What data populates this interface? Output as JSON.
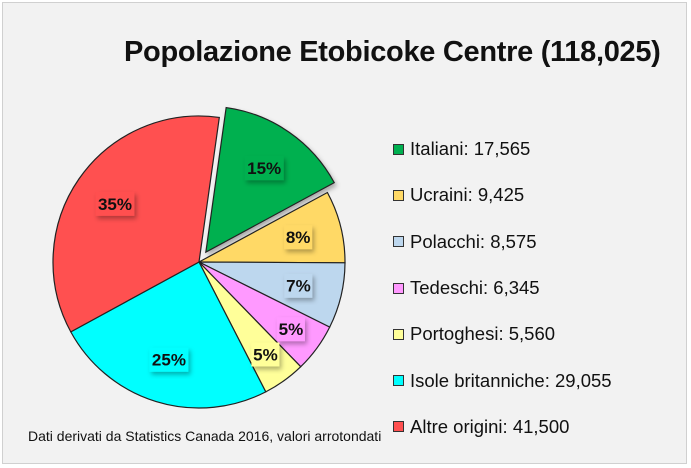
{
  "chart_data": {
    "type": "pie",
    "title": "Popolazione Etobicoke Centre (118,025)",
    "legend_position": "right",
    "slices": [
      {
        "label": "Italiani",
        "value": 17565,
        "value_text": "17,565",
        "percent_label": "15%",
        "color": "#00b050",
        "exploded": true
      },
      {
        "label": "Ucraini",
        "value": 9425,
        "value_text": "9,425",
        "percent_label": "8%",
        "color": "#ffd966",
        "exploded": false
      },
      {
        "label": "Polacchi",
        "value": 8575,
        "value_text": "8,575",
        "percent_label": "7%",
        "color": "#bdd7ee",
        "exploded": false
      },
      {
        "label": "Tedeschi",
        "value": 6345,
        "value_text": "6,345",
        "percent_label": "5%",
        "color": "#ff99ff",
        "exploded": false
      },
      {
        "label": "Portoghesi",
        "value": 5560,
        "value_text": "5,560",
        "percent_label": "5%",
        "color": "#ffff99",
        "exploded": false
      },
      {
        "label": "Isole britanniche",
        "value": 29055,
        "value_text": "29,055",
        "percent_label": "25%",
        "color": "#00ffff",
        "exploded": false
      },
      {
        "label": "Altre origini",
        "value": 41500,
        "value_text": "41,500",
        "percent_label": "35%",
        "color": "#ff5050",
        "exploded": false
      }
    ],
    "legend_entries": [
      "Italiani: 17,565",
      "Ucraini: 9,425",
      "Polacchi: 8,575",
      "Tedeschi: 6,345",
      "Portoghesi: 5,560",
      "Isole britanniche: 29,055",
      "Altre origini: 41,500"
    ],
    "annotation": "Dati derivati da Statistics Canada 2016, valori arrotondati"
  }
}
